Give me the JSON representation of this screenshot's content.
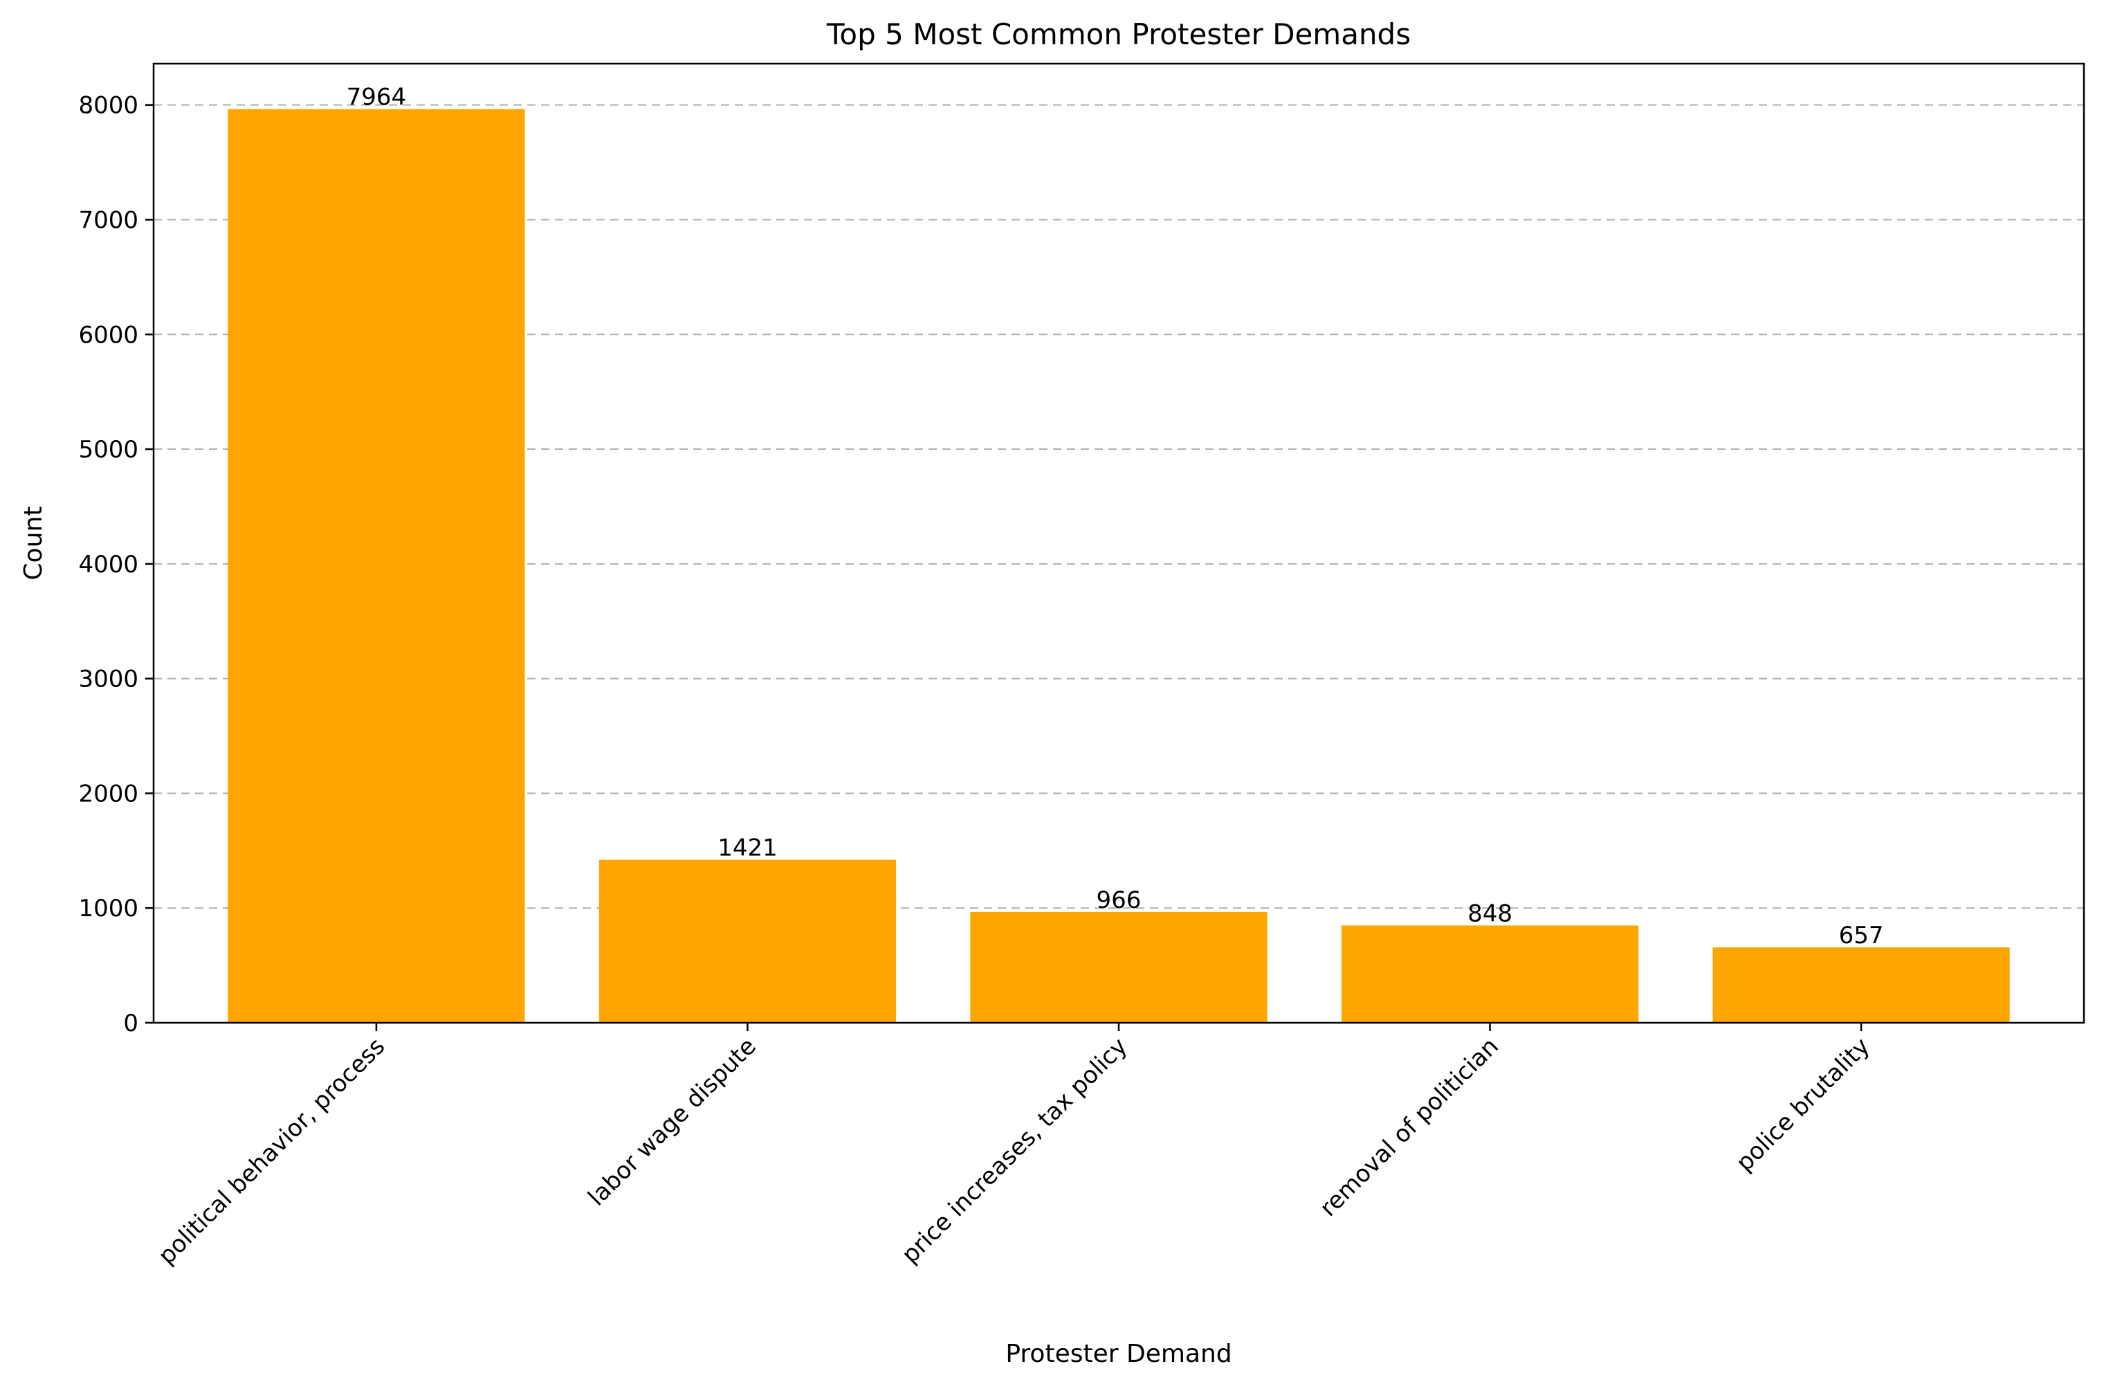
{
  "chart_data": {
    "type": "bar",
    "title": "Top 5 Most Common Protester Demands",
    "xlabel": "Protester Demand",
    "ylabel": "Count",
    "categories": [
      "political behavior, process",
      "labor wage dispute",
      "price increases, tax policy",
      "removal of politician",
      "police brutality"
    ],
    "values": [
      7964,
      1421,
      966,
      848,
      657
    ],
    "data_labels": [
      "7964",
      "1421",
      "966",
      "848",
      "657"
    ],
    "ylim": [
      0,
      8360
    ],
    "yticks": [
      0,
      1000,
      2000,
      3000,
      4000,
      5000,
      6000,
      7000,
      8000
    ],
    "grid": "y-dashed",
    "bar_color": "#FFA500",
    "legend": "none"
  }
}
